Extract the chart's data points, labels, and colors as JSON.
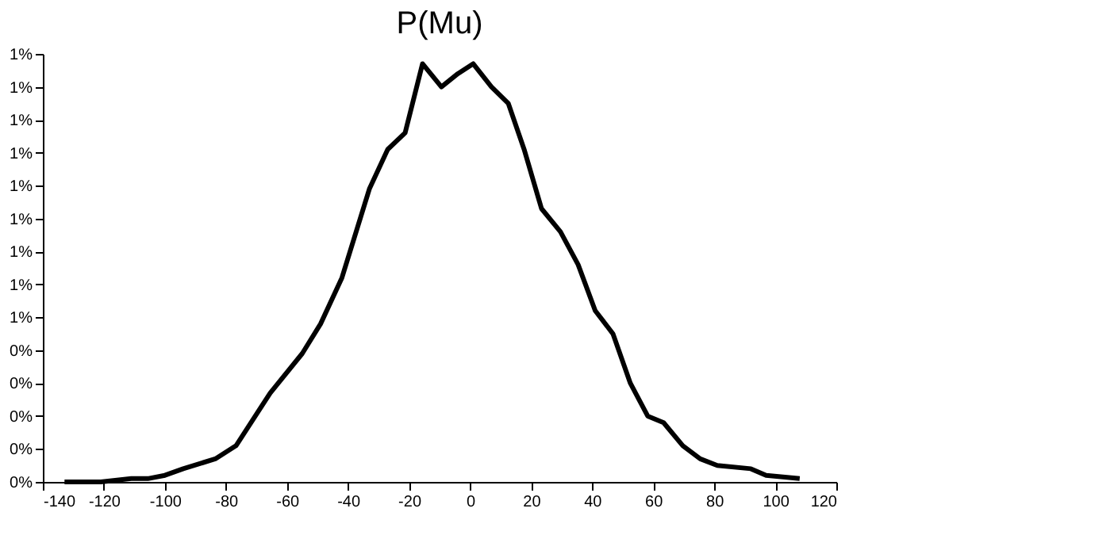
{
  "chart_data": {
    "type": "line",
    "title": "P(Mu)",
    "x": [
      -132.9,
      -121,
      -111,
      -105.6,
      -100,
      -94,
      -83.5,
      -76.7,
      -65.5,
      -55,
      -49,
      -42,
      -33,
      -27,
      -21.3,
      -15.6,
      -9.4,
      -4,
      1,
      7,
      12.5,
      17.7,
      23.4,
      29.6,
      35.4,
      41,
      46.8,
      52.5,
      58.2,
      63.4,
      69.7,
      75.4,
      81,
      92,
      97,
      108
    ],
    "series": [
      {
        "color": "#000000",
        "values": [
          0,
          0,
          0.0001,
          0.0001,
          0.0002,
          0.0004,
          0.0007,
          0.0011,
          0.0027,
          0.0039,
          0.0048,
          0.0062,
          0.0089,
          0.0101,
          0.0106,
          0.0127,
          0.012,
          0.0124,
          0.0127,
          0.012,
          0.0115,
          0.0101,
          0.0083,
          0.0076,
          0.0066,
          0.0052,
          0.0045,
          0.003,
          0.002,
          0.0018,
          0.0011,
          0.0007,
          0.0005,
          0.0004,
          0.0002,
          0.0001
        ]
      }
    ],
    "xlim": [
      -140,
      120
    ],
    "xticks": [
      -140,
      -120,
      -100,
      -80,
      -60,
      -40,
      -20,
      0,
      20,
      40,
      60,
      80,
      100,
      120
    ],
    "ylim": [
      0,
      0.013
    ],
    "yticks": [
      {
        "value": 0,
        "label": "0%"
      },
      {
        "value": 0.001,
        "label": "0%"
      },
      {
        "value": 0.002,
        "label": "0%"
      },
      {
        "value": 0.003,
        "label": "0%"
      },
      {
        "value": 0.004,
        "label": "0%"
      },
      {
        "value": 0.005,
        "label": "1%"
      },
      {
        "value": 0.006,
        "label": "1%"
      },
      {
        "value": 0.007,
        "label": "1%"
      },
      {
        "value": 0.008,
        "label": "1%"
      },
      {
        "value": 0.009,
        "label": "1%"
      },
      {
        "value": 0.01,
        "label": "1%"
      },
      {
        "value": 0.011,
        "label": "1%"
      },
      {
        "value": 0.012,
        "label": "1%"
      },
      {
        "value": 0.013,
        "label": "1%"
      }
    ],
    "grid": false,
    "marker": "none",
    "line_style": "solid"
  }
}
